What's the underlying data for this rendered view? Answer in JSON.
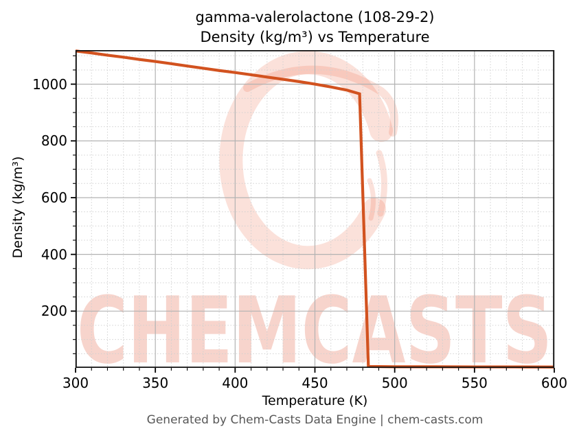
{
  "figure": {
    "title_line1": "gamma-valerolactone (108-29-2)",
    "title_line2": "Density (kg/m³) vs Temperature",
    "footer": "Generated by Chem-Casts Data Engine | chem-casts.com"
  },
  "watermark": {
    "text": "CHEMCASTS",
    "logo": "chemcasts-c-swirl-logo",
    "text_color": "rgba(225,95,65,0.27)",
    "logo_color": "rgba(236,112,80,0.21)"
  },
  "axes": {
    "xlabel": "Temperature (K)",
    "ylabel": "Density (kg/m³)",
    "x_ticks": [
      300,
      350,
      400,
      450,
      500,
      550,
      600
    ],
    "y_ticks": [
      200,
      400,
      600,
      800,
      1000
    ],
    "x_minor_step": 10,
    "y_minor_step": 50,
    "xlim": [
      300,
      600
    ],
    "ylim": [
      0,
      1120
    ]
  },
  "colors": {
    "line": "#d2521f",
    "grid_major": "#b2b2b2",
    "grid_minor": "#d0d0d0",
    "spine": "#141414",
    "tick": "#000000",
    "footer_text": "#575757"
  },
  "chart_data": {
    "type": "line",
    "title": "gamma-valerolactone (108-29-2)\nDensity (kg/m³) vs Temperature",
    "xlabel": "Temperature (K)",
    "ylabel": "Density (kg/m³)",
    "xlim": [
      300,
      600
    ],
    "ylim": [
      0,
      1120
    ],
    "x_tick_labels": [
      "300",
      "350",
      "400",
      "450",
      "500",
      "550",
      "600"
    ],
    "y_tick_labels": [
      "200",
      "400",
      "600",
      "800",
      "1000"
    ],
    "grid": "major solid + minor dashed, light gray",
    "legend": "none",
    "annotations": [
      "CHEMCASTS watermark",
      "Chem-Casts C-swirl logo watermark"
    ],
    "series": [
      {
        "name": "Density (kg/m³)",
        "color": "#d2521f",
        "line_width": 4.2,
        "points": [
          [
            300,
            1117
          ],
          [
            310,
            1110
          ],
          [
            320,
            1102
          ],
          [
            330,
            1095
          ],
          [
            340,
            1087
          ],
          [
            350,
            1080
          ],
          [
            360,
            1072
          ],
          [
            370,
            1064
          ],
          [
            380,
            1056
          ],
          [
            390,
            1048
          ],
          [
            400,
            1041
          ],
          [
            410,
            1033
          ],
          [
            420,
            1025
          ],
          [
            430,
            1017
          ],
          [
            440,
            1009
          ],
          [
            450,
            1000
          ],
          [
            460,
            990
          ],
          [
            470,
            979
          ],
          [
            478,
            966
          ],
          [
            483.5,
            5
          ],
          [
            490,
            4.5
          ],
          [
            500,
            4
          ],
          [
            525,
            4
          ],
          [
            550,
            3.5
          ],
          [
            575,
            3.5
          ],
          [
            600,
            3
          ]
        ],
        "note": "liquid density decreases 300-478 K, boiling transition ~478-484 K drops to near-zero vapor density, flat to 600 K"
      }
    ]
  }
}
